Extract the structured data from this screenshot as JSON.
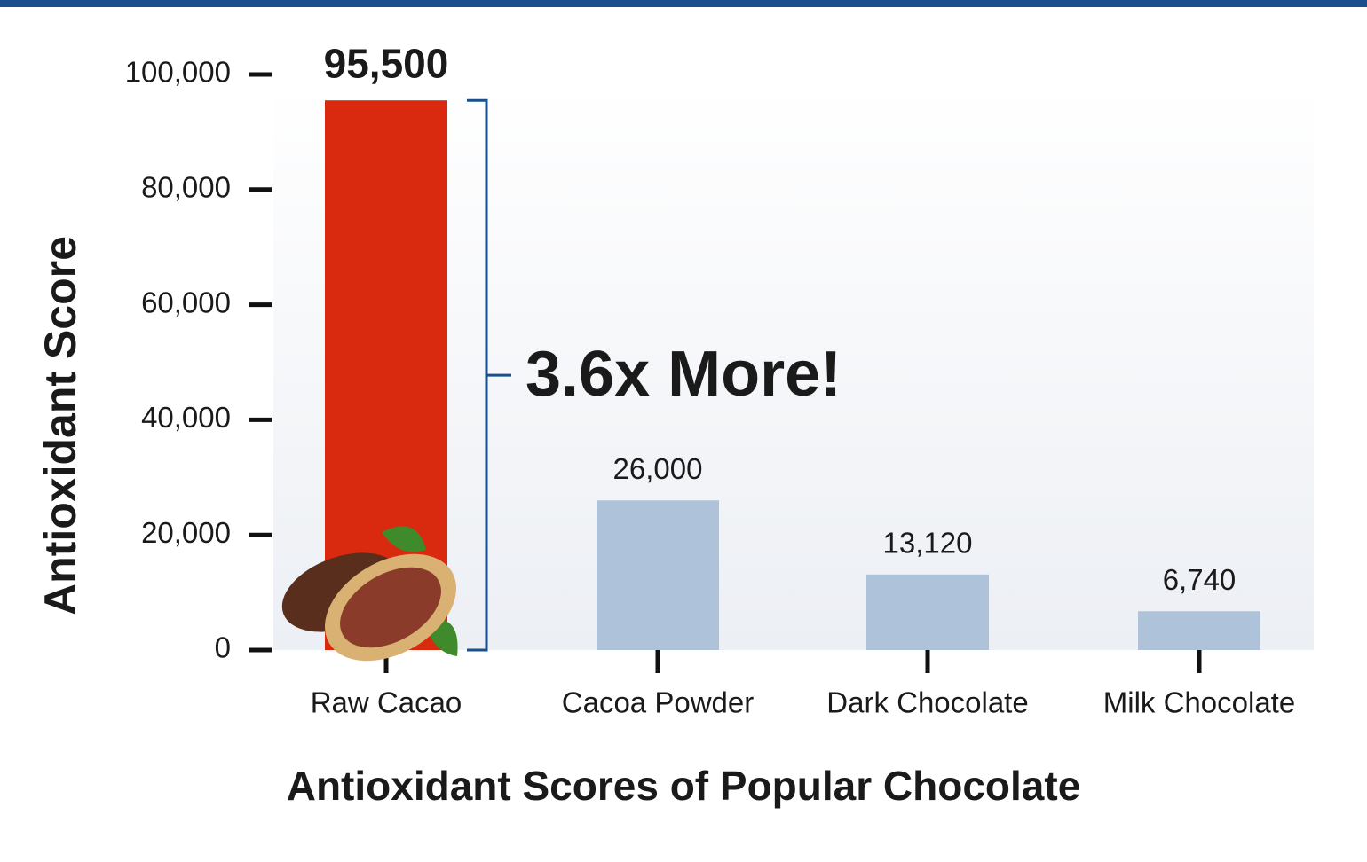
{
  "chart_data": {
    "type": "bar",
    "title": "Antioxidant Scores of Popular Chocolate",
    "y_label": "Antioxidant Score",
    "annotation": "3.6x More!",
    "categories": [
      "Raw Cacao",
      "Cacoa Powder",
      "Dark Chocolate",
      "Milk Chocolate"
    ],
    "values": [
      95500,
      26000,
      13120,
      6740
    ],
    "value_labels": [
      "95,500",
      "26,000",
      "13,120",
      "6,740"
    ],
    "colors": [
      "#d9290f",
      "#aec3da",
      "#aec3da",
      "#aec3da"
    ],
    "ylim": [
      0,
      100000
    ],
    "yticks": [
      0,
      {
        "value": 20000,
        "label": "20,000"
      },
      {
        "value": 40000,
        "label": "40,000"
      },
      {
        "value": 60000,
        "label": "60,000"
      },
      {
        "value": 80000,
        "label": "80,000"
      },
      {
        "value": 100000,
        "label": "100,000"
      }
    ]
  }
}
